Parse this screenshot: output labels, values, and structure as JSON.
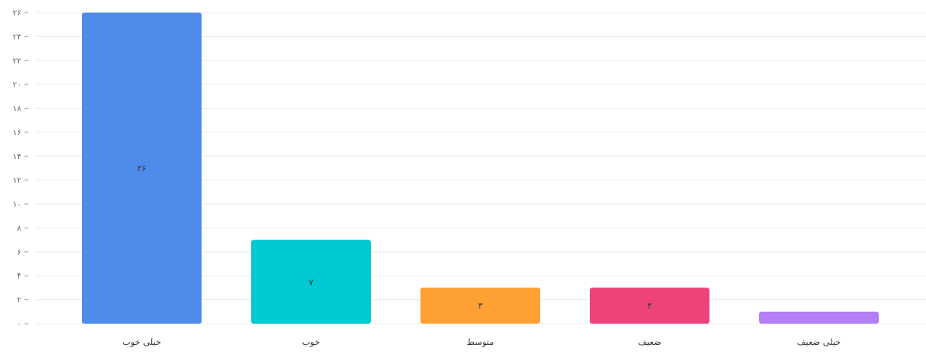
{
  "chart_data": {
    "type": "bar",
    "categories": [
      "خیلی خوب",
      "خوب",
      "متوسط",
      "ضعیف",
      "خیلی ضعیف"
    ],
    "values": [
      26,
      7,
      3,
      3,
      1
    ],
    "value_labels": [
      "۲۶",
      "۷",
      "۳",
      "۳",
      ""
    ],
    "colors": [
      "#4f8bea",
      "#00c9d1",
      "#ffa034",
      "#ee4379",
      "#b47ef5"
    ],
    "yticks": [
      {
        "value": 0,
        "label": "۰"
      },
      {
        "value": 2,
        "label": "۲"
      },
      {
        "value": 4,
        "label": "۴"
      },
      {
        "value": 6,
        "label": "۶"
      },
      {
        "value": 8,
        "label": "۸"
      },
      {
        "value": 10,
        "label": "۱۰"
      },
      {
        "value": 12,
        "label": "۱۲"
      },
      {
        "value": 14,
        "label": "۱۴"
      },
      {
        "value": 16,
        "label": "۱۶"
      },
      {
        "value": 18,
        "label": "۱۸"
      },
      {
        "value": 20,
        "label": "۲۰"
      },
      {
        "value": 22,
        "label": "۲۲"
      },
      {
        "value": 24,
        "label": "۲۴"
      },
      {
        "value": 26,
        "label": "۲۶"
      }
    ],
    "ylim": [
      0,
      26
    ],
    "grid": true
  }
}
